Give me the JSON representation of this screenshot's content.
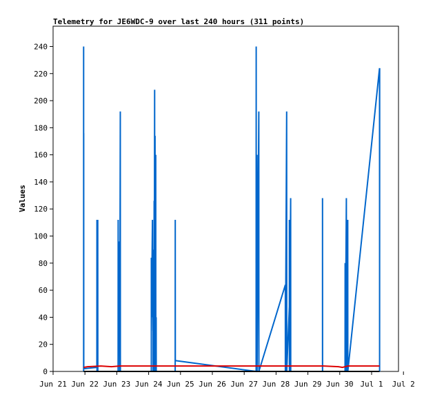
{
  "chart_data": {
    "type": "line",
    "title": "Telemetry for JE6WDC-9 over last 240 hours (311 points)",
    "ylabel": "Values",
    "xlabel": "",
    "x_axis": {
      "type": "time",
      "range": [
        "Jun 21",
        "Jul 2"
      ],
      "tick_labels": [
        "Jun 21",
        "Jun 22",
        "Jun 23",
        "Jun 24",
        "Jun 25",
        "Jun 26",
        "Jun 27",
        "Jun 28",
        "Jun 29",
        "Jun 30",
        "Jul 1",
        "Jul 2"
      ]
    },
    "y_axis": {
      "range": [
        0,
        255
      ],
      "ticks": [
        0,
        20,
        40,
        60,
        80,
        100,
        120,
        140,
        160,
        180,
        200,
        220,
        240
      ]
    },
    "grid": false,
    "series": [
      {
        "color": "#0066cc",
        "points": [
          [
            "Jun 21 23:00",
            0
          ],
          [
            "Jun 21 23:00",
            240
          ],
          [
            "Jun 21 23:02",
            0
          ],
          [
            "Jun 21 23:05",
            176
          ],
          [
            "Jun 21 23:07",
            2
          ],
          [
            "Jun 22 09:00",
            3
          ],
          [
            "Jun 22 09:02",
            112
          ],
          [
            "Jun 22 09:05",
            0
          ],
          [
            "Jun 22 09:40",
            112
          ],
          [
            "Jun 22 09:43",
            0
          ],
          [
            "Jun 23 01:00",
            0
          ],
          [
            "Jun 23 01:02",
            112
          ],
          [
            "Jun 23 01:05",
            0
          ],
          [
            "Jun 23 01:40",
            96
          ],
          [
            "Jun 23 01:43",
            16
          ],
          [
            "Jun 23 02:10",
            64
          ],
          [
            "Jun 23 02:13",
            0
          ],
          [
            "Jun 23 02:40",
            192
          ],
          [
            "Jun 23 02:43",
            0
          ],
          [
            "Jun 24 02:00",
            0
          ],
          [
            "Jun 24 02:02",
            84
          ],
          [
            "Jun 24 02:05",
            30
          ],
          [
            "Jun 24 02:50",
            112
          ],
          [
            "Jun 24 02:53",
            40
          ],
          [
            "Jun 24 03:20",
            56
          ],
          [
            "Jun 24 03:23",
            0
          ],
          [
            "Jun 24 03:50",
            90
          ],
          [
            "Jun 24 03:53",
            0
          ],
          [
            "Jun 24 04:10",
            126
          ],
          [
            "Jun 24 04:13",
            0
          ],
          [
            "Jun 24 04:30",
            208
          ],
          [
            "Jun 24 04:33",
            0
          ],
          [
            "Jun 24 04:50",
            174
          ],
          [
            "Jun 24 04:53",
            0
          ],
          [
            "Jun 24 05:20",
            160
          ],
          [
            "Jun 24 05:23",
            0
          ],
          [
            "Jun 24 05:40",
            40
          ],
          [
            "Jun 24 05:43",
            0
          ],
          [
            "Jun 24 20:00",
            0
          ],
          [
            "Jun 24 20:02",
            112
          ],
          [
            "Jun 24 20:05",
            8
          ],
          [
            "Jun 27 09:00",
            0
          ],
          [
            "Jun 27 09:02",
            240
          ],
          [
            "Jun 27 09:05",
            0
          ],
          [
            "Jun 27 09:40",
            160
          ],
          [
            "Jun 27 09:43",
            0
          ],
          [
            "Jun 27 11:00",
            192
          ],
          [
            "Jun 27 11:03",
            0
          ],
          [
            "Jun 28 07:00",
            64
          ],
          [
            "Jun 28 07:02",
            0
          ],
          [
            "Jun 28 08:00",
            192
          ],
          [
            "Jun 28 08:03",
            0
          ],
          [
            "Jun 28 10:00",
            48
          ],
          [
            "Jun 28 10:03",
            112
          ],
          [
            "Jun 28 10:05",
            0
          ],
          [
            "Jun 28 11:00",
            128
          ],
          [
            "Jun 28 11:03",
            0
          ],
          [
            "Jun 29 11:00",
            0
          ],
          [
            "Jun 29 11:02",
            128
          ],
          [
            "Jun 29 11:05",
            0
          ],
          [
            "Jun 30 04:00",
            0
          ],
          [
            "Jun 30 04:02",
            80
          ],
          [
            "Jun 30 04:05",
            0
          ],
          [
            "Jun 30 05:00",
            128
          ],
          [
            "Jun 30 05:03",
            0
          ],
          [
            "Jun 30 06:00",
            56
          ],
          [
            "Jun 30 06:03",
            112
          ],
          [
            "Jun 30 06:05",
            0
          ],
          [
            "Jul 1 06:00",
            224
          ],
          [
            "Jul 1 06:02",
            0
          ],
          [
            "Jul 1 06:05",
            224
          ]
        ]
      },
      {
        "color": "#dd0000",
        "points": [
          [
            "Jun 21 23:00",
            3
          ],
          [
            "Jun 22 02:00",
            3.5
          ],
          [
            "Jun 22 12:00",
            4
          ],
          [
            "Jun 22 20:00",
            3.5
          ],
          [
            "Jun 23 02:00",
            4
          ],
          [
            "Jun 24 02:00",
            4
          ],
          [
            "Jun 25 00:00",
            4
          ],
          [
            "Jun 27 00:00",
            4
          ],
          [
            "Jun 28 00:00",
            4
          ],
          [
            "Jun 29 00:00",
            4
          ],
          [
            "Jun 29 12:00",
            4
          ],
          [
            "Jun 29 23:00",
            3.5
          ],
          [
            "Jun 30 02:00",
            3
          ],
          [
            "Jun 30 06:00",
            4
          ],
          [
            "Jul 1 06:00",
            4
          ]
        ]
      },
      {
        "color": "#000000",
        "points": [
          [
            "Jun 21 23:00",
            0
          ],
          [
            "Jun 22 02:00",
            0
          ],
          [
            "Jun 25 00:00",
            0
          ],
          [
            "Jun 28 00:00",
            0
          ],
          [
            "Jul 1 06:00",
            0
          ]
        ]
      }
    ]
  }
}
